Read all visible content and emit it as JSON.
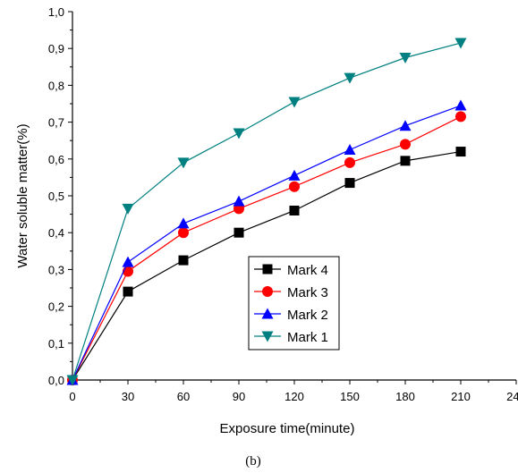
{
  "chart_data": {
    "type": "line",
    "xlabel": "Exposure time(minute)",
    "ylabel": "Water soluble matter(%)",
    "caption": "(b)",
    "xlim": [
      0,
      240
    ],
    "ylim": [
      0.0,
      1.0
    ],
    "x_ticks": [
      0,
      30,
      60,
      90,
      120,
      150,
      180,
      210,
      240
    ],
    "x_tick_labels": [
      "0",
      "30",
      "60",
      "90",
      "120",
      "150",
      "180",
      "210",
      "240"
    ],
    "y_ticks": [
      0.0,
      0.1,
      0.2,
      0.3,
      0.4,
      0.5,
      0.6,
      0.7,
      0.8,
      0.9,
      1.0
    ],
    "y_tick_labels": [
      "0,0",
      "0,1",
      "0,2",
      "0,3",
      "0,4",
      "0,5",
      "0,6",
      "0,7",
      "0,8",
      "0,9",
      "1,0"
    ],
    "grid": false,
    "legend_position": "center-right",
    "x": [
      0,
      30,
      60,
      90,
      120,
      150,
      180,
      210
    ],
    "series": [
      {
        "name": "Mark 4",
        "marker": "square",
        "color": "#000000",
        "values": [
          0.0,
          0.24,
          0.325,
          0.4,
          0.46,
          0.535,
          0.595,
          0.62
        ]
      },
      {
        "name": "Mark 3",
        "marker": "circle",
        "color": "#ff0000",
        "values": [
          0.0,
          0.295,
          0.4,
          0.465,
          0.525,
          0.59,
          0.64,
          0.715
        ]
      },
      {
        "name": "Mark 2",
        "marker": "triangle-up",
        "color": "#0000ff",
        "values": [
          0.0,
          0.32,
          0.425,
          0.485,
          0.555,
          0.625,
          0.69,
          0.745
        ]
      },
      {
        "name": "Mark 1",
        "marker": "triangle-down",
        "color": "#008080",
        "values": [
          0.0,
          0.465,
          0.59,
          0.67,
          0.755,
          0.82,
          0.875,
          0.915
        ]
      }
    ]
  }
}
